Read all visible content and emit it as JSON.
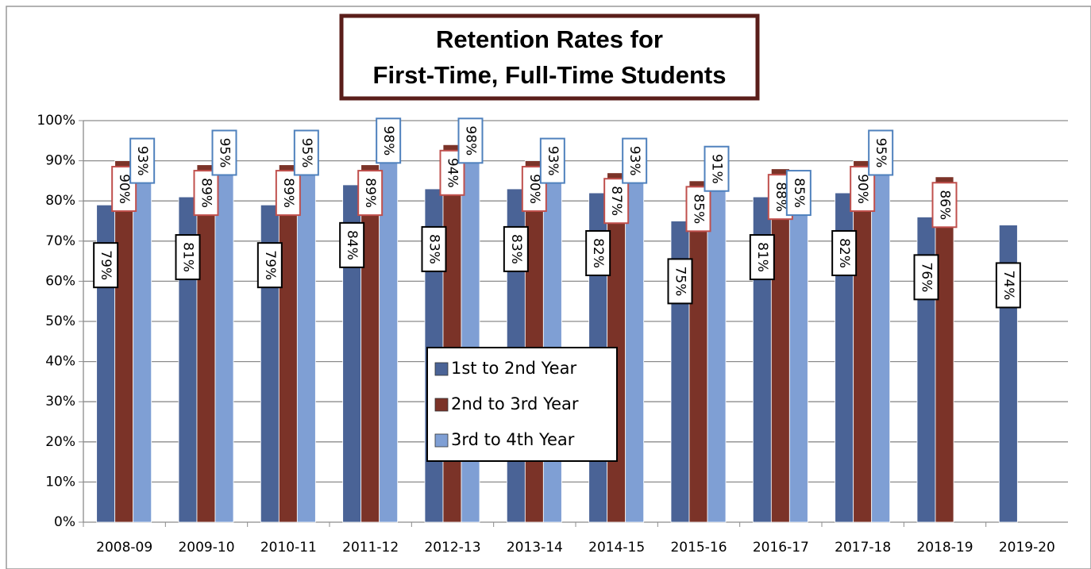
{
  "chart_data": {
    "type": "bar",
    "title": [
      "Retention Rates for",
      "First-Time, Full-Time Students"
    ],
    "categories": [
      "2008-09",
      "2009-10",
      "2010-11",
      "2011-12",
      "2012-13",
      "2013-14",
      "2014-15",
      "2015-16",
      "2016-17",
      "2017-18",
      "2018-19",
      "2019-20"
    ],
    "series": [
      {
        "name": "1st to 2nd Year",
        "color": "#4a6396",
        "label_color": "#000000",
        "values": [
          79,
          81,
          79,
          84,
          83,
          83,
          82,
          75,
          81,
          82,
          76,
          74
        ],
        "value_labels": [
          "79%",
          "81%",
          "79%",
          "84%",
          "83%",
          "83%",
          "82%",
          "75%",
          "81%",
          "82%",
          "76%",
          "74%"
        ]
      },
      {
        "name": "2nd to 3rd Year",
        "color": "#7b3328",
        "label_color": "#c0504d",
        "values": [
          90,
          89,
          89,
          89,
          94,
          90,
          87,
          85,
          88,
          90,
          86,
          null
        ],
        "value_labels": [
          "90%",
          "89%",
          "89%",
          "89%",
          "94%",
          "90%",
          "87%",
          "85%",
          "88%",
          "90%",
          "86%",
          null
        ]
      },
      {
        "name": "3rd to 4th Year",
        "color": "#7f9fd4",
        "label_color": "#4f81bd",
        "values": [
          93,
          95,
          95,
          98,
          98,
          93,
          93,
          91,
          85,
          95,
          null,
          null
        ],
        "value_labels": [
          "93%",
          "95%",
          "95%",
          "98%",
          "98%",
          "93%",
          "93%",
          "91%",
          "85%",
          "95%",
          null,
          null
        ]
      }
    ],
    "ylim": [
      0,
      100
    ],
    "yticks": [
      {
        "value": 0,
        "label": "0%"
      },
      {
        "value": 10,
        "label": "10%"
      },
      {
        "value": 20,
        "label": "20%"
      },
      {
        "value": 30,
        "label": "30%"
      },
      {
        "value": 40,
        "label": "40%"
      },
      {
        "value": 50,
        "label": "50%"
      },
      {
        "value": 60,
        "label": "60%"
      },
      {
        "value": 70,
        "label": "70%"
      },
      {
        "value": 80,
        "label": "80%"
      },
      {
        "value": 90,
        "label": "90%"
      },
      {
        "value": 100,
        "label": "100%"
      }
    ],
    "grid": true
  }
}
